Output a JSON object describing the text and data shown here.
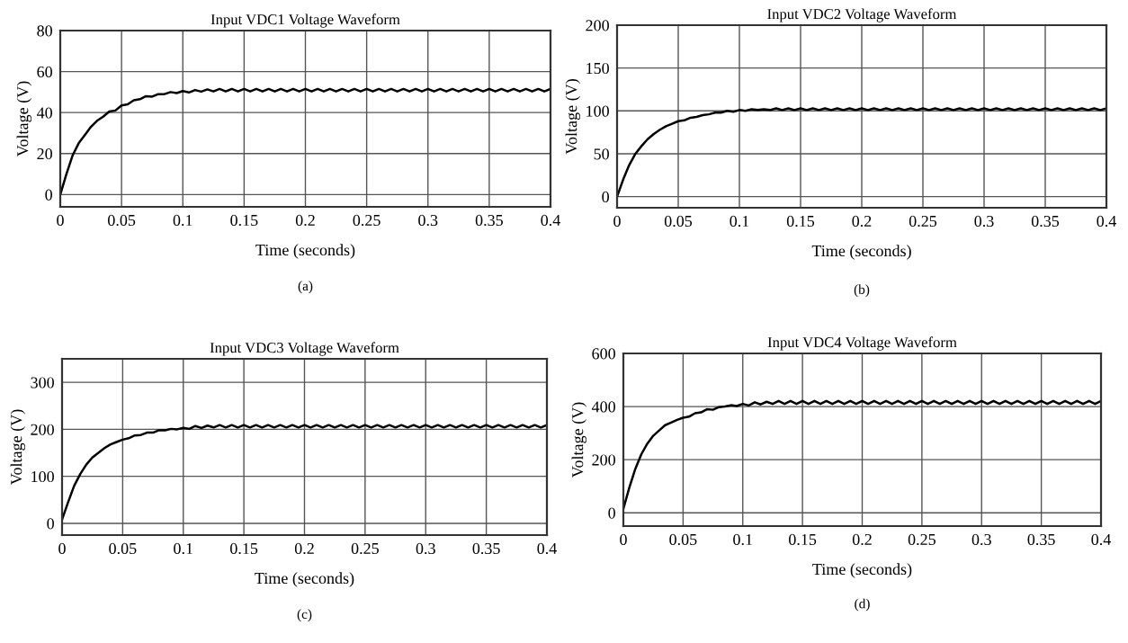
{
  "chart_data": [
    {
      "type": "line",
      "title": "Input VDC1 Voltage Waveform",
      "xlabel": "Time (seconds)",
      "ylabel": "Voltage (V)",
      "annotations": [
        "(a)"
      ],
      "xlim": [
        0,
        0.4
      ],
      "ylim": [
        -6,
        80
      ],
      "xticks": [
        0,
        0.05,
        0.1,
        0.15,
        0.2,
        0.25,
        0.3,
        0.35,
        0.4
      ],
      "yticks": [
        0,
        20,
        40,
        60,
        80
      ],
      "grid": true,
      "marker": "none",
      "line_style": "solid",
      "x": [
        0,
        0.005,
        0.01,
        0.015,
        0.02,
        0.025,
        0.03,
        0.035,
        0.04,
        0.045,
        0.05,
        0.055,
        0.06,
        0.065,
        0.07,
        0.075,
        0.08,
        0.085,
        0.09,
        0.095,
        0.1,
        0.105,
        0.11,
        0.115,
        0.12,
        0.125,
        0.13,
        0.135,
        0.14,
        0.145,
        0.15,
        0.155,
        0.16,
        0.165,
        0.17,
        0.175,
        0.18,
        0.185,
        0.19,
        0.195,
        0.2,
        0.205,
        0.21,
        0.215,
        0.22,
        0.225,
        0.23,
        0.235,
        0.24,
        0.245,
        0.25,
        0.255,
        0.26,
        0.265,
        0.27,
        0.275,
        0.28,
        0.285,
        0.29,
        0.295,
        0.3,
        0.305,
        0.31,
        0.315,
        0.32,
        0.325,
        0.33,
        0.335,
        0.34,
        0.345,
        0.35,
        0.355,
        0.36,
        0.365,
        0.37,
        0.375,
        0.38,
        0.385,
        0.39,
        0.395,
        0.4
      ],
      "series": [
        {
          "color": "#000000",
          "values": [
            0,
            10,
            19,
            25,
            29,
            33,
            36,
            38,
            40.5,
            41,
            43.5,
            44,
            46,
            46.5,
            48,
            47.8,
            49,
            49,
            50,
            49.5,
            50.5,
            49.8,
            51,
            50.2,
            51.3,
            50.3,
            51.5,
            50.3,
            51.5,
            50.3,
            51.5,
            50.3,
            51.5,
            50.3,
            51.5,
            50.3,
            51.5,
            50.3,
            51.5,
            50.3,
            51.5,
            50.3,
            51.5,
            50.3,
            51.5,
            50.3,
            51.5,
            50.3,
            51.5,
            50.3,
            51.5,
            50.3,
            51.5,
            50.3,
            51.5,
            50.3,
            51.5,
            50.3,
            51.5,
            50.3,
            51.5,
            50.3,
            51.5,
            50.3,
            51.5,
            50.3,
            51.5,
            50.3,
            51.5,
            50.3,
            51.5,
            50.3,
            51.5,
            50.3,
            51.5,
            50.3,
            51.5,
            50.3,
            51.5,
            50.3,
            51.5
          ]
        }
      ]
    },
    {
      "type": "line",
      "title": "Input VDC2 Voltage Waveform",
      "xlabel": "Time (seconds)",
      "ylabel": "Voltage (V)",
      "annotations": [
        "(b)"
      ],
      "xlim": [
        0,
        0.4
      ],
      "ylim": [
        -13,
        200
      ],
      "xticks": [
        0,
        0.05,
        0.1,
        0.15,
        0.2,
        0.25,
        0.3,
        0.35,
        0.4
      ],
      "yticks": [
        0,
        50,
        100,
        150,
        200
      ],
      "grid": true,
      "marker": "none",
      "line_style": "solid",
      "x": [
        0,
        0.005,
        0.01,
        0.015,
        0.02,
        0.025,
        0.03,
        0.035,
        0.04,
        0.045,
        0.05,
        0.055,
        0.06,
        0.065,
        0.07,
        0.075,
        0.08,
        0.085,
        0.09,
        0.095,
        0.1,
        0.105,
        0.11,
        0.115,
        0.12,
        0.125,
        0.13,
        0.135,
        0.14,
        0.145,
        0.15,
        0.155,
        0.16,
        0.165,
        0.17,
        0.175,
        0.18,
        0.185,
        0.19,
        0.195,
        0.2,
        0.205,
        0.21,
        0.215,
        0.22,
        0.225,
        0.23,
        0.235,
        0.24,
        0.245,
        0.25,
        0.255,
        0.26,
        0.265,
        0.27,
        0.275,
        0.28,
        0.285,
        0.29,
        0.295,
        0.3,
        0.305,
        0.31,
        0.315,
        0.32,
        0.325,
        0.33,
        0.335,
        0.34,
        0.345,
        0.35,
        0.355,
        0.36,
        0.365,
        0.37,
        0.375,
        0.38,
        0.385,
        0.39,
        0.395,
        0.4
      ],
      "series": [
        {
          "color": "#000000",
          "values": [
            0,
            20,
            37,
            50,
            59,
            67,
            73,
            78,
            82,
            85,
            88,
            89,
            92,
            93,
            95,
            96,
            98,
            98,
            100,
            99,
            101,
            100,
            102,
            101,
            102,
            101,
            103,
            101,
            103,
            101,
            103,
            101,
            103,
            101,
            103,
            101,
            103,
            101,
            103,
            101,
            103,
            101,
            103,
            101,
            103,
            101,
            103,
            101,
            103,
            101,
            103,
            101,
            103,
            101,
            103,
            101,
            103,
            101,
            103,
            101,
            103,
            101,
            103,
            101,
            103,
            101,
            103,
            101,
            103,
            101,
            103,
            101,
            103,
            101,
            103,
            101,
            103,
            101,
            103,
            101,
            103
          ]
        }
      ]
    },
    {
      "type": "line",
      "title": "Input VDC3 Voltage Waveform",
      "xlabel": "Time (seconds)",
      "ylabel": "Voltage (V)",
      "annotations": [
        "(c)"
      ],
      "xlim": [
        0,
        0.4
      ],
      "ylim": [
        -25,
        350
      ],
      "xticks": [
        0,
        0.05,
        0.1,
        0.15,
        0.2,
        0.25,
        0.3,
        0.35,
        0.4
      ],
      "yticks": [
        0,
        100,
        200,
        300
      ],
      "grid": true,
      "marker": "none",
      "line_style": "solid",
      "x": [
        0,
        0.005,
        0.01,
        0.015,
        0.02,
        0.025,
        0.03,
        0.035,
        0.04,
        0.045,
        0.05,
        0.055,
        0.06,
        0.065,
        0.07,
        0.075,
        0.08,
        0.085,
        0.09,
        0.095,
        0.1,
        0.105,
        0.11,
        0.115,
        0.12,
        0.125,
        0.13,
        0.135,
        0.14,
        0.145,
        0.15,
        0.155,
        0.16,
        0.165,
        0.17,
        0.175,
        0.18,
        0.185,
        0.19,
        0.195,
        0.2,
        0.205,
        0.21,
        0.215,
        0.22,
        0.225,
        0.23,
        0.235,
        0.24,
        0.245,
        0.25,
        0.255,
        0.26,
        0.265,
        0.27,
        0.275,
        0.28,
        0.285,
        0.29,
        0.295,
        0.3,
        0.305,
        0.31,
        0.315,
        0.32,
        0.325,
        0.33,
        0.335,
        0.34,
        0.345,
        0.35,
        0.355,
        0.36,
        0.365,
        0.37,
        0.375,
        0.38,
        0.385,
        0.39,
        0.395,
        0.4
      ],
      "series": [
        {
          "color": "#000000",
          "values": [
            8,
            45,
            80,
            105,
            125,
            140,
            150,
            160,
            168,
            173,
            178,
            181,
            187,
            188,
            193,
            193,
            198,
            198,
            201,
            200,
            203,
            201,
            207,
            203,
            208,
            204,
            209,
            204,
            209,
            204,
            209,
            204,
            209,
            204,
            209,
            204,
            209,
            204,
            209,
            204,
            209,
            204,
            209,
            204,
            209,
            204,
            209,
            204,
            209,
            204,
            209,
            204,
            209,
            204,
            209,
            204,
            209,
            204,
            209,
            204,
            209,
            204,
            209,
            204,
            209,
            204,
            209,
            204,
            209,
            204,
            209,
            204,
            209,
            204,
            209,
            204,
            209,
            204,
            209,
            204,
            209
          ]
        }
      ]
    },
    {
      "type": "line",
      "title": "Input VDC4 Voltage Waveform",
      "xlabel": "Time (seconds)",
      "ylabel": "Voltage (V)",
      "annotations": [
        "(d)"
      ],
      "xlim": [
        0,
        0.4
      ],
      "ylim": [
        -50,
        600
      ],
      "xticks": [
        0,
        0.05,
        0.1,
        0.15,
        0.2,
        0.25,
        0.3,
        0.35,
        0.4
      ],
      "yticks": [
        0,
        200,
        400,
        600
      ],
      "grid": true,
      "marker": "none",
      "line_style": "solid",
      "x": [
        0,
        0.005,
        0.01,
        0.015,
        0.02,
        0.025,
        0.03,
        0.035,
        0.04,
        0.045,
        0.05,
        0.055,
        0.06,
        0.065,
        0.07,
        0.075,
        0.08,
        0.085,
        0.09,
        0.095,
        0.1,
        0.105,
        0.11,
        0.115,
        0.12,
        0.125,
        0.13,
        0.135,
        0.14,
        0.145,
        0.15,
        0.155,
        0.16,
        0.165,
        0.17,
        0.175,
        0.18,
        0.185,
        0.19,
        0.195,
        0.2,
        0.205,
        0.21,
        0.215,
        0.22,
        0.225,
        0.23,
        0.235,
        0.24,
        0.245,
        0.25,
        0.255,
        0.26,
        0.265,
        0.27,
        0.275,
        0.28,
        0.285,
        0.29,
        0.295,
        0.3,
        0.305,
        0.31,
        0.315,
        0.32,
        0.325,
        0.33,
        0.335,
        0.34,
        0.345,
        0.35,
        0.355,
        0.36,
        0.365,
        0.37,
        0.375,
        0.38,
        0.385,
        0.39,
        0.395,
        0.4
      ],
      "series": [
        {
          "color": "#000000",
          "values": [
            15,
            95,
            165,
            220,
            260,
            290,
            310,
            330,
            340,
            350,
            358,
            362,
            375,
            378,
            390,
            388,
            398,
            400,
            405,
            402,
            410,
            404,
            416,
            408,
            418,
            410,
            421,
            410,
            421,
            410,
            421,
            410,
            421,
            410,
            421,
            410,
            421,
            410,
            421,
            410,
            421,
            410,
            421,
            410,
            421,
            410,
            421,
            410,
            421,
            410,
            421,
            410,
            421,
            410,
            421,
            410,
            421,
            410,
            421,
            410,
            421,
            410,
            421,
            410,
            421,
            410,
            421,
            410,
            421,
            410,
            421,
            410,
            421,
            410,
            421,
            410,
            421,
            410,
            421,
            410,
            421
          ]
        }
      ]
    }
  ]
}
